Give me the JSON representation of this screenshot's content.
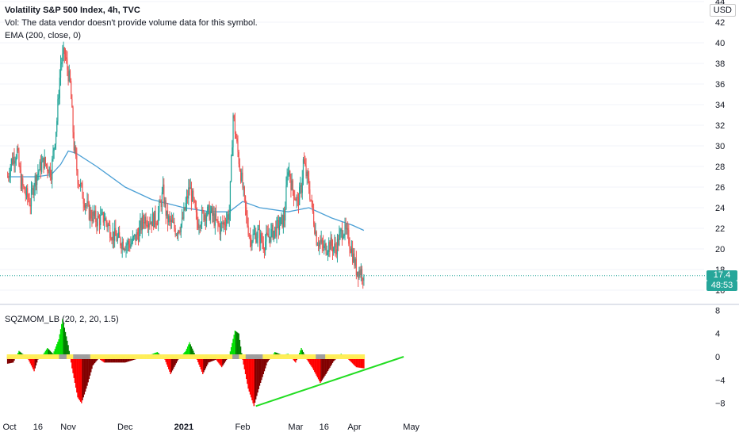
{
  "header": {
    "title": "Volatility S&P 500 Index, 4h, TVC",
    "volume_note": "Vol: The data vendor doesn't provide volume data for this symbol.",
    "ema_label": "EMA (200, close, 0)",
    "currency": "USD"
  },
  "indicator": {
    "label": "SQZMOM_LB (20, 2, 20, 1.5)"
  },
  "price_tag": {
    "price": "17.4",
    "countdown": "48:53"
  },
  "colors": {
    "up_candle": "#26a69a",
    "down_candle": "#ef5350",
    "ema_line": "#4a9fd5",
    "trendline": "#22dd22",
    "hist_lime": "#00e000",
    "hist_green": "#008000",
    "hist_red": "#ff0000",
    "hist_maroon": "#800000",
    "squeeze_dot_yellow": "#ffee58",
    "squeeze_dot_gray": "#9e9e9e"
  },
  "chart_data": [
    {
      "type": "candlestick",
      "title": "Volatility S&P 500 Index, 4h, TVC",
      "x_ticks": [
        "Oct",
        "16",
        "Nov",
        "Dec",
        "2021",
        "Feb",
        "Mar",
        "16",
        "Apr",
        "May"
      ],
      "y_ticks": [
        16,
        18,
        20,
        22,
        24,
        26,
        28,
        30,
        32,
        34,
        36,
        38,
        40,
        42,
        44
      ],
      "ylim": [
        16,
        44
      ],
      "last_price": 17.4,
      "close_path": [
        [
          "2020-09-30",
          27.0
        ],
        [
          "2020-10-02",
          28.5
        ],
        [
          "2020-10-05",
          29.5
        ],
        [
          "2020-10-07",
          26.5
        ],
        [
          "2020-10-09",
          25.5
        ],
        [
          "2020-10-12",
          24.5
        ],
        [
          "2020-10-14",
          26.5
        ],
        [
          "2020-10-16",
          27.5
        ],
        [
          "2020-10-19",
          28.5
        ],
        [
          "2020-10-21",
          28.0
        ],
        [
          "2020-10-23",
          27.5
        ],
        [
          "2020-10-26",
          32.5
        ],
        [
          "2020-10-28",
          38.0
        ],
        [
          "2020-10-30",
          39.0
        ],
        [
          "2020-11-02",
          36.0
        ],
        [
          "2020-11-04",
          30.0
        ],
        [
          "2020-11-06",
          27.0
        ],
        [
          "2020-11-09",
          25.0
        ],
        [
          "2020-11-12",
          23.5
        ],
        [
          "2020-11-16",
          22.8
        ],
        [
          "2020-11-20",
          23.0
        ],
        [
          "2020-11-24",
          21.5
        ],
        [
          "2020-11-28",
          20.8
        ],
        [
          "2020-12-01",
          20.5
        ],
        [
          "2020-12-04",
          20.5
        ],
        [
          "2020-12-08",
          21.5
        ],
        [
          "2020-12-11",
          23.0
        ],
        [
          "2020-12-15",
          22.8
        ],
        [
          "2020-12-18",
          23.0
        ],
        [
          "2020-12-21",
          25.5
        ],
        [
          "2020-12-23",
          23.0
        ],
        [
          "2020-12-28",
          21.8
        ],
        [
          "2020-12-31",
          22.5
        ],
        [
          "2021-01-04",
          26.0
        ],
        [
          "2021-01-06",
          24.5
        ],
        [
          "2021-01-08",
          22.5
        ],
        [
          "2021-01-12",
          23.5
        ],
        [
          "2021-01-15",
          23.5
        ],
        [
          "2021-01-20",
          22.0
        ],
        [
          "2021-01-22",
          22.5
        ],
        [
          "2021-01-25",
          23.5
        ],
        [
          "2021-01-27",
          33.0
        ],
        [
          "2021-01-29",
          30.0
        ],
        [
          "2021-02-01",
          26.0
        ],
        [
          "2021-02-03",
          23.0
        ],
        [
          "2021-02-05",
          21.0
        ],
        [
          "2021-02-09",
          21.5
        ],
        [
          "2021-02-12",
          20.5
        ],
        [
          "2021-02-16",
          21.5
        ],
        [
          "2021-02-19",
          22.0
        ],
        [
          "2021-02-23",
          23.0
        ],
        [
          "2021-02-25",
          28.0
        ],
        [
          "2021-02-27",
          26.0
        ],
        [
          "2021-03-02",
          24.5
        ],
        [
          "2021-03-04",
          26.0
        ],
        [
          "2021-03-05",
          28.5
        ],
        [
          "2021-03-08",
          26.0
        ],
        [
          "2021-03-10",
          23.5
        ],
        [
          "2021-03-12",
          21.0
        ],
        [
          "2021-03-16",
          20.0
        ],
        [
          "2021-03-19",
          20.5
        ],
        [
          "2021-03-22",
          20.0
        ],
        [
          "2021-03-24",
          21.0
        ],
        [
          "2021-03-26",
          22.0
        ],
        [
          "2021-03-29",
          21.0
        ],
        [
          "2021-03-31",
          19.5
        ],
        [
          "2021-04-02",
          18.0
        ],
        [
          "2021-04-05",
          17.8
        ],
        [
          "2021-04-06",
          17.4
        ]
      ],
      "series": [
        {
          "name": "EMA (200, close, 0)",
          "points": [
            [
              "2020-09-30",
              27.0
            ],
            [
              "2020-10-15",
              27.0
            ],
            [
              "2020-10-23",
              27.2
            ],
            [
              "2020-10-28",
              28.2
            ],
            [
              "2020-11-01",
              29.5
            ],
            [
              "2020-11-05",
              29.3
            ],
            [
              "2020-11-16",
              28.0
            ],
            [
              "2020-12-01",
              26.0
            ],
            [
              "2020-12-15",
              24.8
            ],
            [
              "2021-01-01",
              24.0
            ],
            [
              "2021-01-15",
              23.6
            ],
            [
              "2021-01-25",
              23.6
            ],
            [
              "2021-02-01",
              24.6
            ],
            [
              "2021-02-10",
              24.0
            ],
            [
              "2021-02-25",
              23.6
            ],
            [
              "2021-03-08",
              24.0
            ],
            [
              "2021-03-20",
              23.0
            ],
            [
              "2021-03-31",
              22.3
            ],
            [
              "2021-04-06",
              21.8
            ]
          ]
        }
      ]
    },
    {
      "type": "histogram",
      "title": "SQZMOM_LB (20, 2, 20, 1.5)",
      "y_ticks": [
        -8,
        -4,
        0,
        4,
        8
      ],
      "ylim": [
        -10,
        9
      ],
      "values": [
        [
          "2020-09-30",
          -1.2
        ],
        [
          "2020-10-03",
          -1.0
        ],
        [
          "2020-10-06",
          1.0
        ],
        [
          "2020-10-09",
          0.2
        ],
        [
          "2020-10-11",
          -0.5
        ],
        [
          "2020-10-14",
          -2.5
        ],
        [
          "2020-10-16",
          -0.5
        ],
        [
          "2020-10-19",
          0.5
        ],
        [
          "2020-10-21",
          1.5
        ],
        [
          "2020-10-24",
          0.5
        ],
        [
          "2020-10-27",
          3.0
        ],
        [
          "2020-10-29",
          6.5
        ],
        [
          "2020-11-01",
          2.0
        ],
        [
          "2020-11-03",
          -2.0
        ],
        [
          "2020-11-06",
          -7.0
        ],
        [
          "2020-11-08",
          -8.0
        ],
        [
          "2020-11-11",
          -5.0
        ],
        [
          "2020-11-14",
          -1.5
        ],
        [
          "2020-11-17",
          -0.3
        ],
        [
          "2020-11-20",
          -1.0
        ],
        [
          "2020-11-25",
          -1.0
        ],
        [
          "2020-12-01",
          -1.0
        ],
        [
          "2020-12-08",
          -0.3
        ],
        [
          "2020-12-14",
          0.3
        ],
        [
          "2020-12-18",
          0.8
        ],
        [
          "2020-12-22",
          -0.5
        ],
        [
          "2020-12-25",
          -3.0
        ],
        [
          "2020-12-29",
          -0.5
        ],
        [
          "2021-01-02",
          1.0
        ],
        [
          "2021-01-04",
          2.5
        ],
        [
          "2021-01-07",
          0.3
        ],
        [
          "2021-01-11",
          -3.0
        ],
        [
          "2021-01-14",
          -1.0
        ],
        [
          "2021-01-18",
          -0.5
        ],
        [
          "2021-01-21",
          -1.8
        ],
        [
          "2021-01-25",
          0.2
        ],
        [
          "2021-01-28",
          4.5
        ],
        [
          "2021-01-30",
          4.0
        ],
        [
          "2021-02-01",
          -0.5
        ],
        [
          "2021-02-04",
          -5.5
        ],
        [
          "2021-02-07",
          -8.5
        ],
        [
          "2021-02-10",
          -5.0
        ],
        [
          "2021-02-14",
          -1.0
        ],
        [
          "2021-02-18",
          0.8
        ],
        [
          "2021-02-22",
          0.3
        ],
        [
          "2021-02-25",
          0.5
        ],
        [
          "2021-03-01",
          -1.0
        ],
        [
          "2021-03-04",
          1.5
        ],
        [
          "2021-03-07",
          -0.5
        ],
        [
          "2021-03-10",
          -2.0
        ],
        [
          "2021-03-14",
          -4.5
        ],
        [
          "2021-03-17",
          -3.0
        ],
        [
          "2021-03-21",
          -0.8
        ],
        [
          "2021-03-25",
          0.5
        ],
        [
          "2021-03-29",
          -0.5
        ],
        [
          "2021-04-02",
          -1.8
        ],
        [
          "2021-04-06",
          -2.0
        ]
      ],
      "trendline": [
        [
          "2021-02-08",
          -8.5
        ],
        [
          "2021-04-27",
          0
        ]
      ]
    }
  ]
}
